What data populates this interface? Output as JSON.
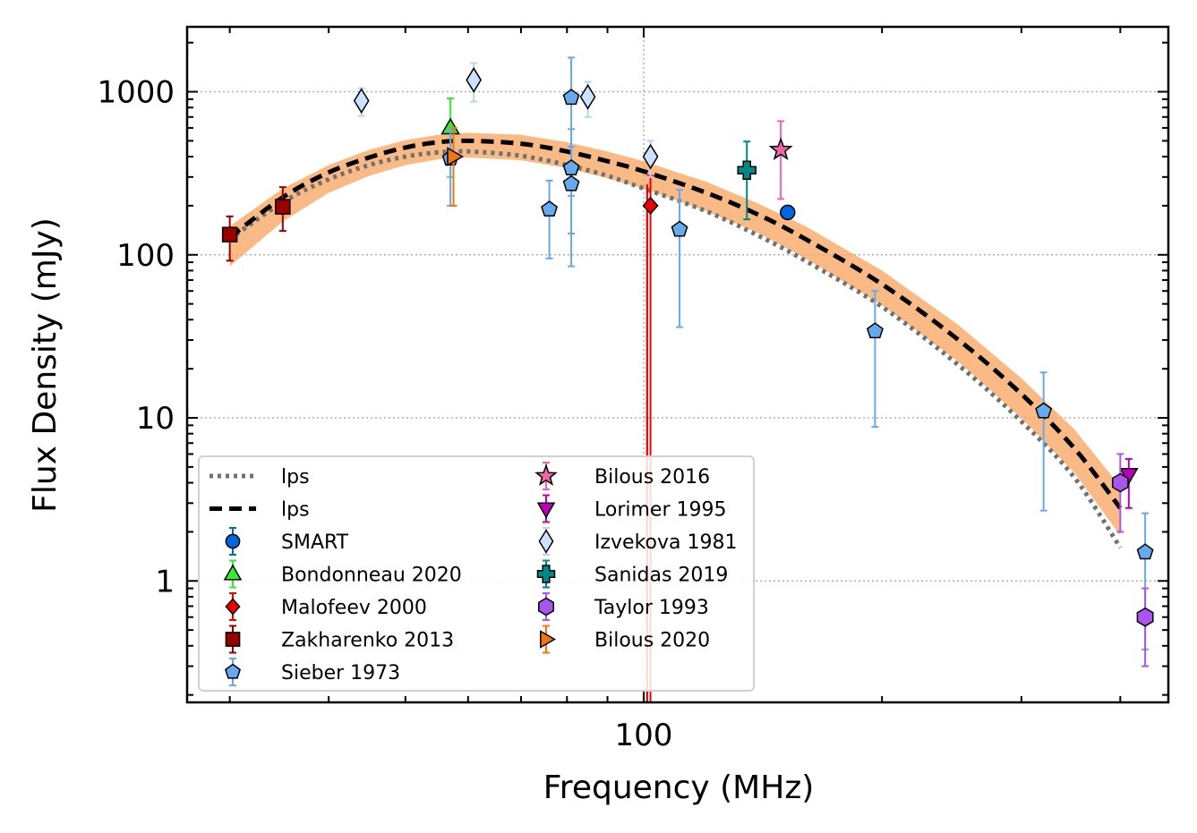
{
  "chart_data": {
    "type": "scatter",
    "xlabel": "Frequency (MHz)",
    "ylabel": "Flux Density (mJy)",
    "x_scale": "log",
    "y_scale": "log",
    "xlim": [
      26.5,
      460
    ],
    "ylim": [
      0.18,
      2500
    ],
    "x_tick_labels": [
      {
        "value": 100,
        "label": "100"
      }
    ],
    "y_tick_labels": [
      {
        "value": 1,
        "label": "1"
      },
      {
        "value": 10,
        "label": "10"
      },
      {
        "value": 100,
        "label": "100"
      },
      {
        "value": 1000,
        "label": "1000"
      }
    ],
    "grid": true,
    "legend_placement": "lower-left",
    "vline": {
      "x": 101,
      "color": "#dd0000"
    },
    "fits": [
      {
        "name": "lps",
        "style": "dotted",
        "color": "#707070",
        "x": [
          30,
          35,
          40,
          45,
          50,
          55,
          60,
          70,
          80,
          90,
          100,
          120,
          140,
          160,
          200,
          250,
          300,
          350,
          400
        ],
        "y": [
          125,
          210,
          290,
          355,
          400,
          425,
          430,
          405,
          355,
          305,
          255,
          185,
          130,
          92,
          48,
          21,
          9.5,
          4.3,
          1.6
        ]
      },
      {
        "name": "lps",
        "style": "dashed",
        "color": "#000000",
        "x": [
          30,
          35,
          40,
          45,
          50,
          55,
          60,
          70,
          80,
          90,
          100,
          120,
          140,
          160,
          200,
          250,
          300,
          350,
          400
        ],
        "y": [
          128,
          225,
          320,
          395,
          455,
          490,
          500,
          480,
          430,
          375,
          325,
          240,
          175,
          125,
          66,
          30,
          14,
          6.5,
          2.8
        ]
      }
    ],
    "band": {
      "color": "#f7a35c",
      "x": [
        30,
        35,
        40,
        45,
        50,
        55,
        60,
        70,
        80,
        90,
        100,
        120,
        140,
        160,
        200,
        250,
        300,
        350,
        400
      ],
      "upper": [
        150,
        255,
        355,
        440,
        505,
        545,
        560,
        545,
        490,
        430,
        375,
        280,
        205,
        150,
        80,
        37,
        17.5,
        8.5,
        3.8
      ],
      "lower": [
        85,
        160,
        240,
        305,
        355,
        385,
        395,
        380,
        340,
        295,
        255,
        185,
        135,
        95,
        49,
        22,
        10,
        4.6,
        1.9
      ]
    },
    "series": [
      {
        "name": "SMART",
        "marker": "circle",
        "color": "#0066dd",
        "points": [
          {
            "x": 152,
            "y": 182,
            "yerr_low": 180,
            "yerr_high": 184
          }
        ]
      },
      {
        "name": "Bondonneau 2020",
        "marker": "triangle-up",
        "color": "#33ee33",
        "points": [
          {
            "x": 57,
            "y": 600,
            "yerr_low": 300,
            "yerr_high": 910
          }
        ]
      },
      {
        "name": "Malofeev 2000",
        "marker": "diamond",
        "color": "#ee0000",
        "points": [
          {
            "x": 102,
            "y": 200,
            "yerr_low": 0.18,
            "yerr_high": 305
          }
        ]
      },
      {
        "name": "Zakharenko 2013",
        "marker": "square",
        "color": "#990000",
        "points": [
          {
            "x": 30,
            "y": 133,
            "yerr_low": 92,
            "yerr_high": 172
          },
          {
            "x": 35,
            "y": 197,
            "yerr_low": 140,
            "yerr_high": 260
          }
        ]
      },
      {
        "name": "Sieber 1973",
        "marker": "pentagon",
        "color": "#66aaee",
        "points": [
          {
            "x": 57,
            "y": 390,
            "yerr_low": 200,
            "yerr_high": 580
          },
          {
            "x": 76,
            "y": 190,
            "yerr_low": 95,
            "yerr_high": 285
          },
          {
            "x": 81,
            "y": 340,
            "yerr_low": 135,
            "yerr_high": 590
          },
          {
            "x": 81,
            "y": 272,
            "yerr_low": 85,
            "yerr_high": 460
          },
          {
            "x": 81,
            "y": 920,
            "yerr_low": 230,
            "yerr_high": 1620
          },
          {
            "x": 111,
            "y": 143,
            "yerr_low": 36,
            "yerr_high": 250
          },
          {
            "x": 196,
            "y": 34,
            "yerr_low": 8.8,
            "yerr_high": 60
          },
          {
            "x": 320,
            "y": 11,
            "yerr_low": 2.7,
            "yerr_high": 19
          },
          {
            "x": 430,
            "y": 1.5,
            "yerr_low": 0.38,
            "yerr_high": 2.6
          }
        ]
      },
      {
        "name": "Bilous 2016",
        "marker": "star",
        "color": "#ee66aa",
        "points": [
          {
            "x": 149,
            "y": 440,
            "yerr_low": 220,
            "yerr_high": 660
          }
        ]
      },
      {
        "name": "Lorimer 1995",
        "marker": "triangle-down",
        "color": "#bb00bb",
        "points": [
          {
            "x": 410,
            "y": 4.5,
            "yerr_low": 2.8,
            "yerr_high": 5.6
          }
        ]
      },
      {
        "name": "Izvekova 1981",
        "marker": "thin-diamond",
        "color": "#cce0ff",
        "points": [
          {
            "x": 44,
            "y": 880,
            "yerr_low": 710,
            "yerr_high": 1050
          },
          {
            "x": 61,
            "y": 1180,
            "yerr_low": 870,
            "yerr_high": 1500
          },
          {
            "x": 85,
            "y": 930,
            "yerr_low": 700,
            "yerr_high": 1150
          },
          {
            "x": 102,
            "y": 400,
            "yerr_low": 300,
            "yerr_high": 500
          }
        ]
      },
      {
        "name": "Sanidas 2019",
        "marker": "plus",
        "color": "#008888",
        "points": [
          {
            "x": 135,
            "y": 330,
            "yerr_low": 165,
            "yerr_high": 495
          }
        ]
      },
      {
        "name": "Taylor 1993",
        "marker": "hexagon",
        "color": "#aa55ee",
        "points": [
          {
            "x": 400,
            "y": 4.0,
            "yerr_low": 2.0,
            "yerr_high": 6.0
          },
          {
            "x": 430,
            "y": 0.6,
            "yerr_low": 0.3,
            "yerr_high": 0.9
          }
        ]
      },
      {
        "name": "Bilous 2020",
        "marker": "triangle-right",
        "color": "#ee7711",
        "points": [
          {
            "x": 57.5,
            "y": 400,
            "yerr_low": 200,
            "yerr_high": 600
          }
        ]
      }
    ],
    "legend": [
      {
        "label": "lps",
        "kind": "fit",
        "ref": 0
      },
      {
        "label": "lps",
        "kind": "fit",
        "ref": 1
      },
      {
        "label": "SMART",
        "kind": "series",
        "ref": 0
      },
      {
        "label": "Bondonneau 2020",
        "kind": "series",
        "ref": 1
      },
      {
        "label": "Malofeev 2000",
        "kind": "series",
        "ref": 2
      },
      {
        "label": "Zakharenko 2013",
        "kind": "series",
        "ref": 3
      },
      {
        "label": "Sieber 1973",
        "kind": "series",
        "ref": 4
      },
      {
        "label": "Bilous 2016",
        "kind": "series",
        "ref": 5
      },
      {
        "label": "Lorimer 1995",
        "kind": "series",
        "ref": 6
      },
      {
        "label": "Izvekova 1981",
        "kind": "series",
        "ref": 7
      },
      {
        "label": "Sanidas 2019",
        "kind": "series",
        "ref": 8
      },
      {
        "label": "Taylor 1993",
        "kind": "series",
        "ref": 9
      },
      {
        "label": "Bilous 2020",
        "kind": "series",
        "ref": 10
      }
    ]
  }
}
